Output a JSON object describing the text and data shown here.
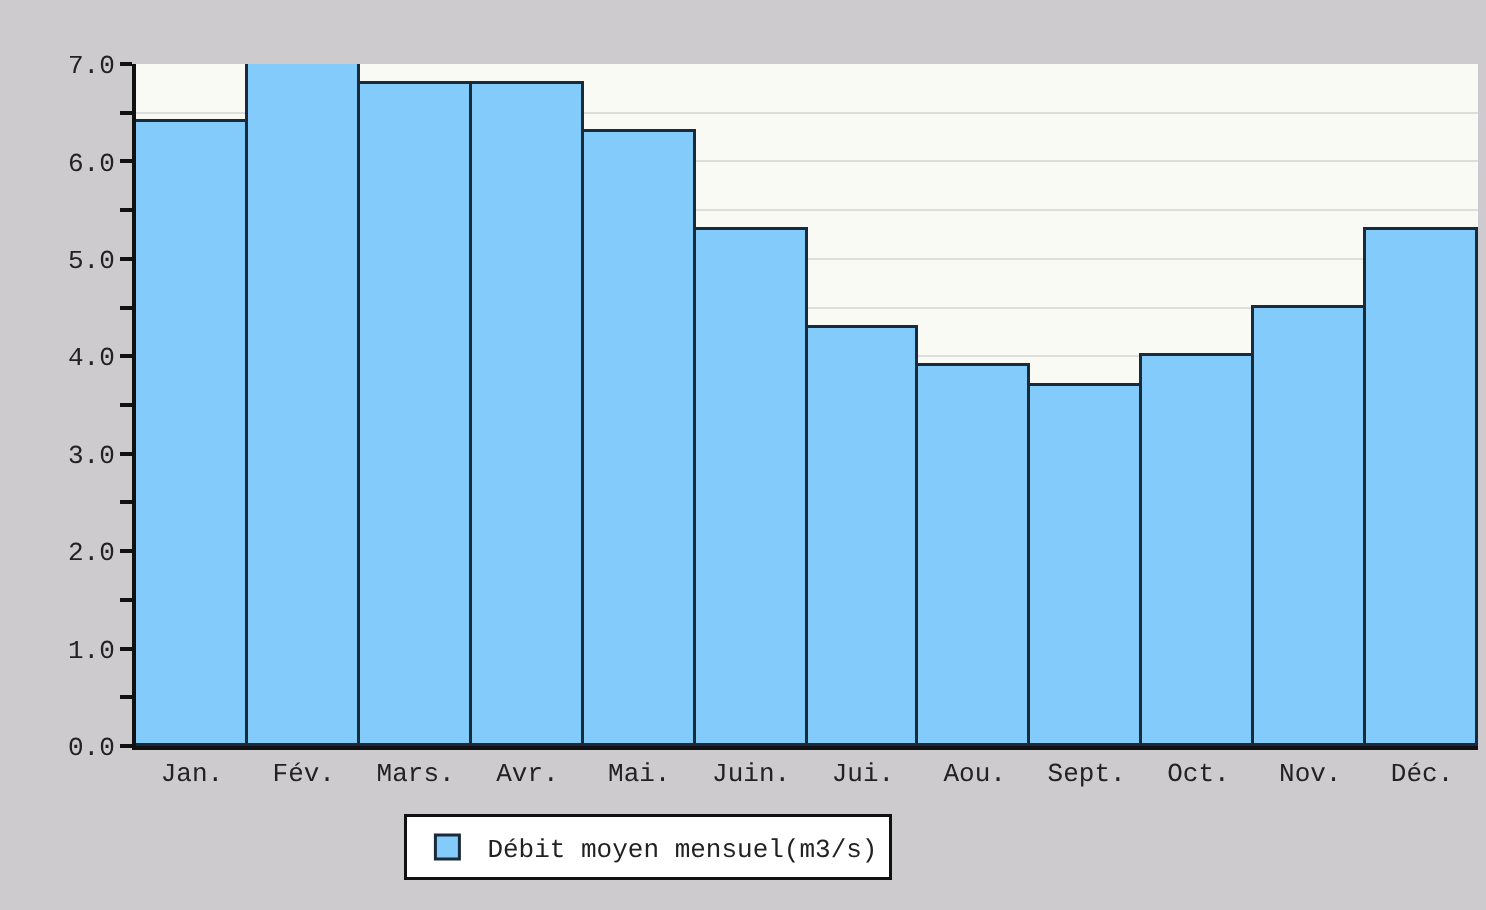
{
  "chart_data": {
    "type": "bar",
    "categories": [
      "Jan.",
      "Fév.",
      "Mars.",
      "Avr.",
      "Mai.",
      "Juin.",
      "Jui.",
      "Aou.",
      "Sept.",
      "Oct.",
      "Nov.",
      "Déc."
    ],
    "series": [
      {
        "name": "Débit moyen mensuel(m3/s)",
        "color": "#82cbfa",
        "values": [
          6.4,
          7.0,
          6.8,
          6.8,
          6.3,
          5.3,
          4.3,
          3.9,
          3.7,
          4.0,
          4.5,
          5.3
        ]
      }
    ],
    "ylim": [
      0,
      7
    ],
    "yticks": [
      {
        "value": 0,
        "label": "0.0"
      },
      {
        "value": 0.5,
        "label": null
      },
      {
        "value": 1,
        "label": "1.0"
      },
      {
        "value": 1.5,
        "label": null
      },
      {
        "value": 2,
        "label": "2.0"
      },
      {
        "value": 2.5,
        "label": null
      },
      {
        "value": 3,
        "label": "3.0"
      },
      {
        "value": 3.5,
        "label": null
      },
      {
        "value": 4,
        "label": "4.0"
      },
      {
        "value": 4.5,
        "label": null
      },
      {
        "value": 5,
        "label": "5.0"
      },
      {
        "value": 5.5,
        "label": null
      },
      {
        "value": 6,
        "label": "6.0"
      },
      {
        "value": 6.5,
        "label": null
      },
      {
        "value": 7,
        "label": "7.0"
      }
    ],
    "grid": "y",
    "legend": "bottom"
  }
}
